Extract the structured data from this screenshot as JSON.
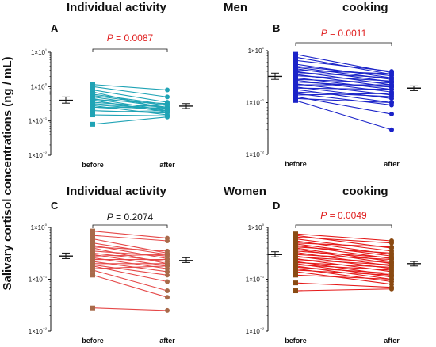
{
  "figure": {
    "y_axis_label": "Salivary cortisol  concentrations (ng / mL)",
    "top_left_title": "Individual activity",
    "top_right_title_left": "Men",
    "top_right_title_right": "cooking",
    "bottom_left_title": "Individual activity",
    "bottom_right_title_left": "Women",
    "bottom_right_title_right": "cooking"
  },
  "chart_data": [
    {
      "panel": "A",
      "type": "line",
      "scale": "log",
      "ylim": [
        0.01,
        10
      ],
      "yticks": [
        "10⁻²",
        "10⁻¹",
        "10⁰",
        "10¹"
      ],
      "tick_prefix": "1×",
      "categories": [
        "before",
        "after"
      ],
      "p_value": "P = 0.0087",
      "p_color": "#e02020",
      "line_color": "#1fa3b5",
      "before_marker": "square",
      "after_marker": "circle",
      "mean_before": {
        "mean": 0.4,
        "low": 0.33,
        "high": 0.5
      },
      "mean_after": {
        "mean": 0.27,
        "low": 0.23,
        "high": 0.32
      },
      "pairs": [
        [
          1.15,
          0.8
        ],
        [
          1.0,
          0.5
        ],
        [
          0.8,
          0.35
        ],
        [
          0.7,
          0.22
        ],
        [
          0.6,
          0.3
        ],
        [
          0.55,
          0.28
        ],
        [
          0.5,
          0.25
        ],
        [
          0.45,
          0.2
        ],
        [
          0.42,
          0.32
        ],
        [
          0.4,
          0.18
        ],
        [
          0.35,
          0.25
        ],
        [
          0.32,
          0.22
        ],
        [
          0.3,
          0.2
        ],
        [
          0.28,
          0.15
        ],
        [
          0.25,
          0.24
        ],
        [
          0.22,
          0.3
        ],
        [
          0.2,
          0.17
        ],
        [
          0.18,
          0.2
        ],
        [
          0.15,
          0.14
        ],
        [
          0.08,
          0.13
        ]
      ]
    },
    {
      "panel": "B",
      "type": "line",
      "scale": "log",
      "ylim": [
        0.01,
        1
      ],
      "yticks": [
        "10⁻²",
        "10⁻¹",
        "10⁰"
      ],
      "tick_prefix": "1×",
      "categories": [
        "before",
        "after"
      ],
      "p_value": "P = 0.0011",
      "p_color": "#e02020",
      "line_color": "#1a22c8",
      "before_marker": "square",
      "after_marker": "circle",
      "mean_before": {
        "mean": 0.32,
        "low": 0.28,
        "high": 0.37
      },
      "mean_after": {
        "mean": 0.19,
        "low": 0.17,
        "high": 0.21
      },
      "pairs": [
        [
          0.85,
          0.38
        ],
        [
          0.75,
          0.35
        ],
        [
          0.65,
          0.4
        ],
        [
          0.55,
          0.3
        ],
        [
          0.5,
          0.33
        ],
        [
          0.48,
          0.28
        ],
        [
          0.45,
          0.25
        ],
        [
          0.42,
          0.36
        ],
        [
          0.4,
          0.22
        ],
        [
          0.38,
          0.3
        ],
        [
          0.35,
          0.2
        ],
        [
          0.33,
          0.26
        ],
        [
          0.3,
          0.18
        ],
        [
          0.28,
          0.24
        ],
        [
          0.27,
          0.16
        ],
        [
          0.25,
          0.2
        ],
        [
          0.23,
          0.14
        ],
        [
          0.22,
          0.22
        ],
        [
          0.2,
          0.12
        ],
        [
          0.19,
          0.18
        ],
        [
          0.18,
          0.1
        ],
        [
          0.16,
          0.13
        ],
        [
          0.15,
          0.09
        ],
        [
          0.14,
          0.15
        ],
        [
          0.13,
          0.06
        ],
        [
          0.12,
          0.1
        ],
        [
          0.11,
          0.03
        ]
      ]
    },
    {
      "panel": "C",
      "type": "line",
      "scale": "log",
      "ylim": [
        0.01,
        1
      ],
      "yticks": [
        "10⁻²",
        "10⁻¹",
        "10⁰"
      ],
      "tick_prefix": "1×",
      "categories": [
        "before",
        "after"
      ],
      "p_value": "P = 0.2074",
      "p_color": "#111111",
      "line_color": "#e54848",
      "before_marker": "square",
      "after_marker": "circle",
      "marker_color": "#a86a4a",
      "mean_before": {
        "mean": 0.28,
        "low": 0.25,
        "high": 0.32
      },
      "mean_after": {
        "mean": 0.23,
        "low": 0.21,
        "high": 0.26
      },
      "pairs": [
        [
          0.85,
          0.62
        ],
        [
          0.7,
          0.55
        ],
        [
          0.6,
          0.32
        ],
        [
          0.5,
          0.3
        ],
        [
          0.45,
          0.25
        ],
        [
          0.42,
          0.35
        ],
        [
          0.4,
          0.2
        ],
        [
          0.35,
          0.28
        ],
        [
          0.32,
          0.22
        ],
        [
          0.3,
          0.18
        ],
        [
          0.28,
          0.3
        ],
        [
          0.26,
          0.16
        ],
        [
          0.24,
          0.24
        ],
        [
          0.22,
          0.14
        ],
        [
          0.2,
          0.2
        ],
        [
          0.19,
          0.12
        ],
        [
          0.18,
          0.09
        ],
        [
          0.16,
          0.18
        ],
        [
          0.15,
          0.06
        ],
        [
          0.12,
          0.045
        ],
        [
          0.028,
          0.025
        ]
      ]
    },
    {
      "panel": "D",
      "type": "line",
      "scale": "log",
      "ylim": [
        0.01,
        1
      ],
      "yticks": [
        "10⁻²",
        "10⁻¹",
        "10⁰"
      ],
      "tick_prefix": "1×",
      "categories": [
        "before",
        "after"
      ],
      "p_value": "P = 0.0049",
      "p_color": "#e02020",
      "line_color": "#e51818",
      "before_marker": "square",
      "after_marker": "circle",
      "marker_color": "#8a4a12",
      "mean_before": {
        "mean": 0.3,
        "low": 0.27,
        "high": 0.34
      },
      "mean_after": {
        "mean": 0.2,
        "low": 0.18,
        "high": 0.22
      },
      "pairs": [
        [
          0.75,
          0.55
        ],
        [
          0.7,
          0.4
        ],
        [
          0.65,
          0.5
        ],
        [
          0.6,
          0.35
        ],
        [
          0.55,
          0.3
        ],
        [
          0.5,
          0.42
        ],
        [
          0.48,
          0.28
        ],
        [
          0.45,
          0.25
        ],
        [
          0.42,
          0.32
        ],
        [
          0.4,
          0.22
        ],
        [
          0.38,
          0.2
        ],
        [
          0.35,
          0.26
        ],
        [
          0.33,
          0.18
        ],
        [
          0.3,
          0.24
        ],
        [
          0.28,
          0.16
        ],
        [
          0.27,
          0.21
        ],
        [
          0.25,
          0.14
        ],
        [
          0.24,
          0.19
        ],
        [
          0.22,
          0.12
        ],
        [
          0.21,
          0.17
        ],
        [
          0.2,
          0.11
        ],
        [
          0.19,
          0.15
        ],
        [
          0.18,
          0.1
        ],
        [
          0.17,
          0.13
        ],
        [
          0.16,
          0.09
        ],
        [
          0.15,
          0.12
        ],
        [
          0.14,
          0.08
        ],
        [
          0.12,
          0.1
        ],
        [
          0.085,
          0.07
        ],
        [
          0.06,
          0.065
        ]
      ]
    }
  ]
}
